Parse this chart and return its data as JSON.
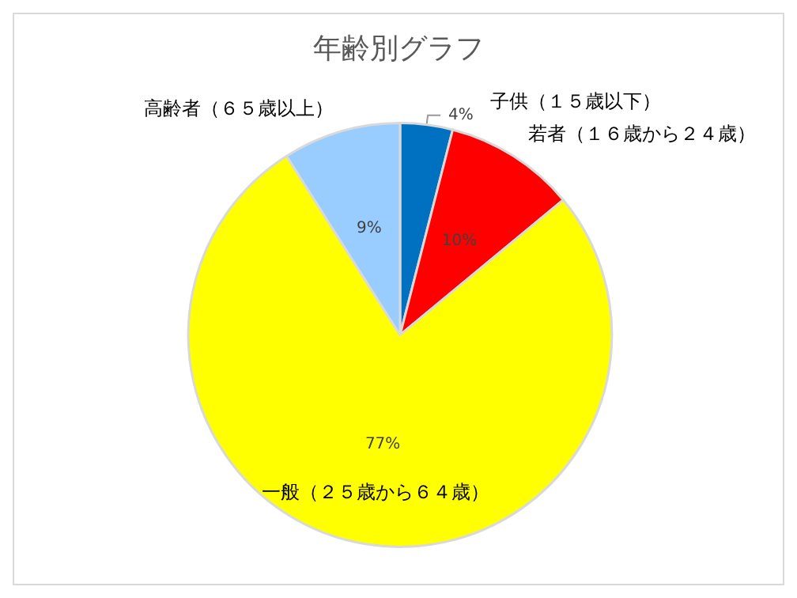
{
  "chart_data": {
    "type": "pie",
    "title": "年齢別グラフ",
    "categories": [
      "子供（１５歳以下）",
      "若者（１６歳から２４歳）",
      "一般（２５歳から６４歳）",
      "高齢者（６５歳以上）"
    ],
    "values": [
      4,
      10,
      77,
      9
    ],
    "value_labels": [
      "4%",
      "10%",
      "77%",
      "9%"
    ],
    "colors": [
      "#0070c0",
      "#ff0000",
      "#ffff00",
      "#99ccff"
    ],
    "legend": false
  }
}
